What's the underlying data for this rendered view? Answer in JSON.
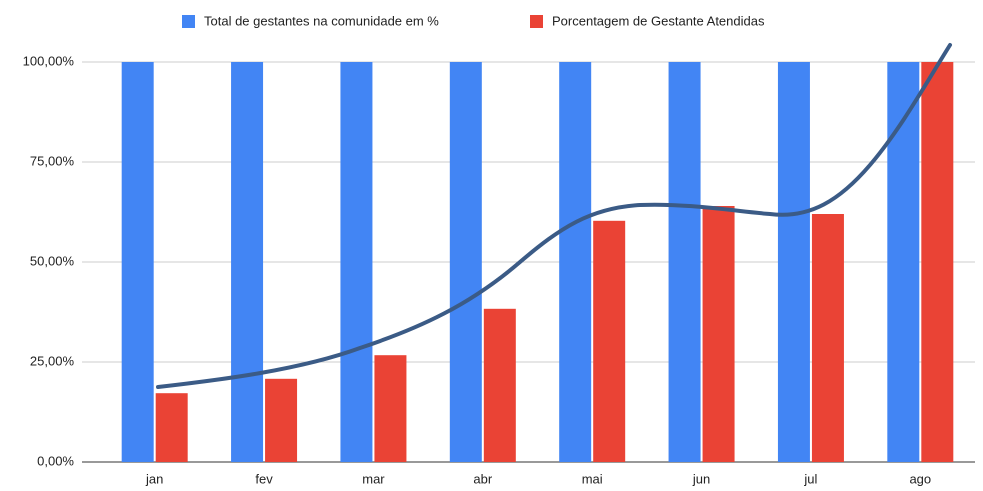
{
  "chart_data": {
    "type": "bar",
    "categories": [
      "jan",
      "fev",
      "mar",
      "abr",
      "mai",
      "jun",
      "jul",
      "ago"
    ],
    "series": [
      {
        "name": "Total de gestantes na comunidade em %",
        "color": "#4285f4",
        "values": [
          100,
          100,
          100,
          100,
          100,
          100,
          100,
          100
        ]
      },
      {
        "name": "Porcentagem de Gestante Atendidas",
        "color": "#ea4335",
        "values": [
          17.2,
          20.8,
          26.7,
          38.3,
          60.3,
          64,
          62,
          100
        ]
      }
    ],
    "ylim": [
      0,
      100
    ],
    "yticks": [
      {
        "value": 0,
        "label": "0,00%"
      },
      {
        "value": 25,
        "label": "25,00%"
      },
      {
        "value": 50,
        "label": "50,00%"
      },
      {
        "value": 75,
        "label": "75,00%"
      },
      {
        "value": 100,
        "label": "100,00%"
      }
    ],
    "grid": true,
    "legend": "top"
  }
}
